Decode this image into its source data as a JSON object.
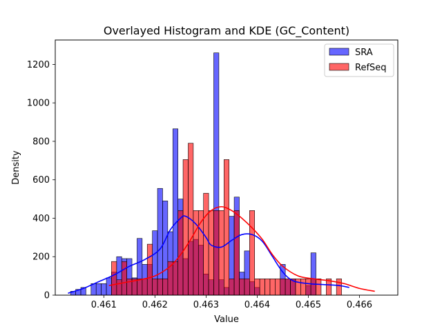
{
  "chart_data": {
    "type": "histogram",
    "title": "Overlayed Histogram and KDE (GC_Content)",
    "xlabel": "Value",
    "ylabel": "Density",
    "xlim": [
      0.46005,
      0.46675
    ],
    "ylim": [
      0,
      1327
    ],
    "xticks": [
      0.461,
      0.462,
      0.463,
      0.464,
      0.465,
      0.466
    ],
    "xtick_labels": [
      "0.461",
      "0.462",
      "0.463",
      "0.464",
      "0.465",
      "0.466"
    ],
    "yticks": [
      0,
      200,
      400,
      600,
      800,
      1000,
      1200
    ],
    "ytick_labels": [
      "0",
      "200",
      "400",
      "600",
      "800",
      "1000",
      "1200"
    ],
    "grid": false,
    "legend": {
      "position": "top-right"
    },
    "series": [
      {
        "name": "SRA",
        "color": "#0000ff",
        "fill_opacity": 0.6,
        "bin_start": 0.46035,
        "bin_width": 0.0001,
        "values": [
          20,
          30,
          40,
          0,
          60,
          60,
          60,
          90,
          120,
          200,
          190,
          190,
          90,
          295,
          160,
          160,
          335,
          555,
          490,
          330,
          865,
          500,
          190,
          280,
          290,
          260,
          110,
          80,
          1260,
          80,
          40,
          410,
          510,
          120,
          230,
          70,
          40,
          0,
          0,
          0,
          0,
          160,
          85,
          85,
          0,
          0,
          50,
          220,
          0
        ]
      },
      {
        "name": "RefSeq",
        "color": "#ff0000",
        "fill_opacity": 0.6,
        "bin_start": 0.46115,
        "bin_width": 0.0001,
        "values": [
          175,
          80,
          175,
          85,
          85,
          85,
          85,
          265,
          85,
          85,
          85,
          175,
          175,
          440,
          705,
          790,
          440,
          440,
          530,
          440,
          440,
          440,
          705,
          85,
          440,
          85,
          85,
          440,
          85,
          85,
          85,
          85,
          85,
          85,
          85,
          85,
          85,
          85,
          85,
          85,
          85,
          0,
          85,
          0,
          85
        ]
      }
    ],
    "kde": [
      {
        "name": "SRA",
        "color": "#0000ff",
        "x": [
          0.4603,
          0.4606,
          0.4609,
          0.4612,
          0.4615,
          0.4618,
          0.4621,
          0.4623,
          0.4625,
          0.4626,
          0.4628,
          0.463,
          0.4631,
          0.4633,
          0.4635,
          0.4637,
          0.4639,
          0.4641,
          0.4643,
          0.4645,
          0.4647,
          0.465,
          0.4653,
          0.4656,
          0.4658
        ],
        "y": [
          10,
          35,
          70,
          105,
          150,
          185,
          240,
          340,
          400,
          410,
          370,
          300,
          260,
          250,
          285,
          315,
          315,
          280,
          200,
          120,
          75,
          60,
          55,
          50,
          40
        ]
      },
      {
        "name": "RefSeq",
        "color": "#ff0000",
        "x": [
          0.4611,
          0.4614,
          0.4617,
          0.462,
          0.4623,
          0.4625,
          0.4627,
          0.4629,
          0.4631,
          0.4633,
          0.4635,
          0.4637,
          0.4639,
          0.4641,
          0.4643,
          0.4645,
          0.4648,
          0.4651,
          0.4654,
          0.4657,
          0.466,
          0.4663
        ],
        "y": [
          50,
          65,
          80,
          100,
          150,
          210,
          290,
          380,
          440,
          460,
          440,
          400,
          350,
          290,
          210,
          150,
          100,
          85,
          75,
          60,
          35,
          20
        ]
      }
    ]
  }
}
